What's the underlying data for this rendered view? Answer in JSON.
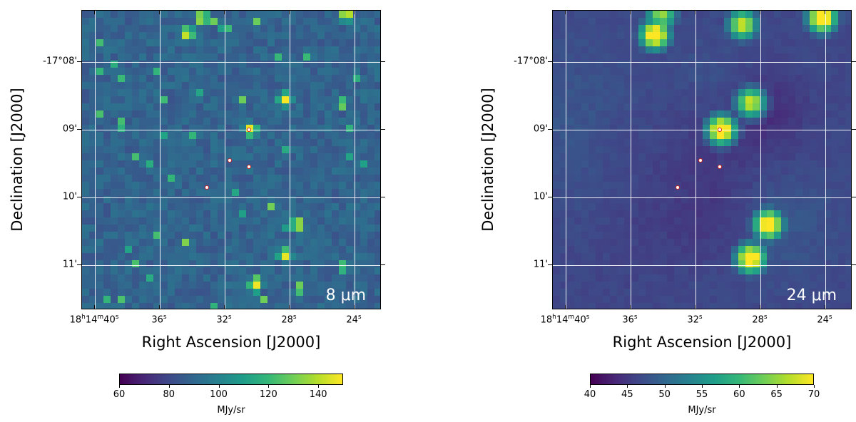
{
  "panels": [
    {
      "wavelength": "8 μm",
      "xlabel": "Right Ascension [J2000]",
      "ylabel": "Declination [J2000]",
      "ra_ticks": [
        "18h14m40s",
        "36s",
        "32s",
        "28s",
        "24s"
      ],
      "dec_ticks": [
        "-17°08'",
        "09'",
        "10'",
        "11'"
      ],
      "colorbar": {
        "label": "MJy/sr",
        "min": 60,
        "max": 150,
        "ticks": [
          "60",
          "80",
          "100",
          "120",
          "140"
        ]
      },
      "background_level": 0.32,
      "bright_spots": [
        {
          "ra_s": 33.4,
          "dec_m": 7.35,
          "level": 1.0
        },
        {
          "ra_s": 24.5,
          "dec_m": 7.3,
          "level": 1.0
        },
        {
          "ra_s": 34.3,
          "dec_m": 7.58,
          "level": 1.0
        },
        {
          "ra_s": 28.3,
          "dec_m": 8.55,
          "level": 1.0
        },
        {
          "ra_s": 30.4,
          "dec_m": 9.0,
          "level": 1.0
        },
        {
          "ra_s": 27.5,
          "dec_m": 10.4,
          "level": 1.0
        },
        {
          "ra_s": 28.3,
          "dec_m": 10.85,
          "level": 1.0
        },
        {
          "ra_s": 30.1,
          "dec_m": 11.3,
          "level": 1.0
        }
      ]
    },
    {
      "wavelength": "24 μm",
      "xlabel": "Right Ascension [J2000]",
      "ylabel": "Declination [J2000]",
      "ra_ticks": [
        "18h14m40s",
        "36s",
        "32s",
        "28s",
        "24s"
      ],
      "dec_ticks": [
        "-17°08'",
        "09'",
        "10'",
        "11'"
      ],
      "colorbar": {
        "label": "MJy/sr",
        "min": 40,
        "max": 70,
        "ticks": [
          "40",
          "45",
          "50",
          "55",
          "60",
          "65",
          "70"
        ]
      },
      "background_level": 0.22,
      "bright_spots": [
        {
          "ra_s": 24.2,
          "dec_m": 7.35,
          "level": 1.0
        },
        {
          "ra_s": 34.5,
          "dec_m": 7.6,
          "level": 1.0
        },
        {
          "ra_s": 30.4,
          "dec_m": 9.0,
          "level": 1.0
        },
        {
          "ra_s": 28.6,
          "dec_m": 8.6,
          "level": 0.8
        },
        {
          "ra_s": 29.1,
          "dec_m": 7.45,
          "level": 0.8
        },
        {
          "ra_s": 27.5,
          "dec_m": 10.4,
          "level": 1.0
        },
        {
          "ra_s": 28.6,
          "dec_m": 10.9,
          "level": 1.0
        },
        {
          "ra_s": 34.1,
          "dec_m": 7.3,
          "level": 0.7
        }
      ]
    }
  ],
  "source_markers": [
    {
      "ra_s": 30.5,
      "dec_m": 9.0
    },
    {
      "ra_s": 31.7,
      "dec_m": 9.45
    },
    {
      "ra_s": 30.5,
      "dec_m": 9.55
    },
    {
      "ra_s": 33.1,
      "dec_m": 9.85
    }
  ],
  "colormap": "viridis"
}
